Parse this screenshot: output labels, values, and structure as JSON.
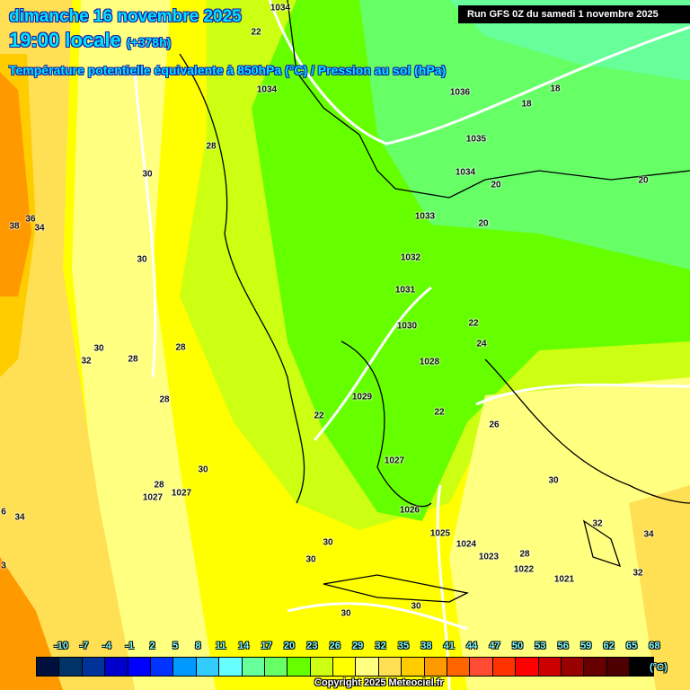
{
  "header": {
    "date": "dimanche 16 novembre 2025",
    "time": "19:00 locale",
    "lead": "(+378h)",
    "subtitle": "Température potentielle équivalente à 850hPa (°C) / Pression au sol (hPa)",
    "run": "Run GFS 0Z du samedi 1 novembre 2025"
  },
  "map_labels": [
    "1034",
    "22",
    "1034",
    "18",
    "1036",
    "18",
    "28",
    "30",
    "36",
    "38",
    "34",
    "30",
    "1035",
    "1034",
    "20",
    "20",
    "1033",
    "20",
    "1032",
    "1031",
    "1030",
    "22",
    "24",
    "30",
    "32",
    "28",
    "28",
    "28",
    "1028",
    "1029",
    "22",
    "22",
    "26",
    "30",
    "1027",
    "28",
    "1027",
    "1027",
    "1026",
    "1025",
    "1024",
    "1023",
    "1022",
    "28",
    "1021",
    "30",
    "32",
    "34",
    "32",
    "30",
    "30",
    "30",
    "30",
    "34",
    "6",
    "3"
  ],
  "legend": {
    "ticks": [
      "-10",
      "-7",
      "-4",
      "-1",
      "2",
      "5",
      "8",
      "11",
      "14",
      "17",
      "20",
      "23",
      "26",
      "29",
      "32",
      "35",
      "38",
      "41",
      "44",
      "47",
      "50",
      "53",
      "56",
      "59",
      "62",
      "65",
      "68"
    ],
    "colors": [
      "#00103c",
      "#003366",
      "#003399",
      "#0000cc",
      "#0000ff",
      "#0033ff",
      "#0099ff",
      "#33ccff",
      "#66ffff",
      "#66ff99",
      "#66ff66",
      "#66ff00",
      "#ccff11",
      "#ffff00",
      "#ffff80",
      "#ffe055",
      "#ffcc00",
      "#ff9900",
      "#ff6600",
      "#ff4c33",
      "#ff3300",
      "#ff0000",
      "#cc0000",
      "#990000",
      "#660000",
      "#4d0000",
      "#000000"
    ],
    "unit": "(°C)"
  },
  "copyright": "Copyright 2025 Meteociel.fr"
}
